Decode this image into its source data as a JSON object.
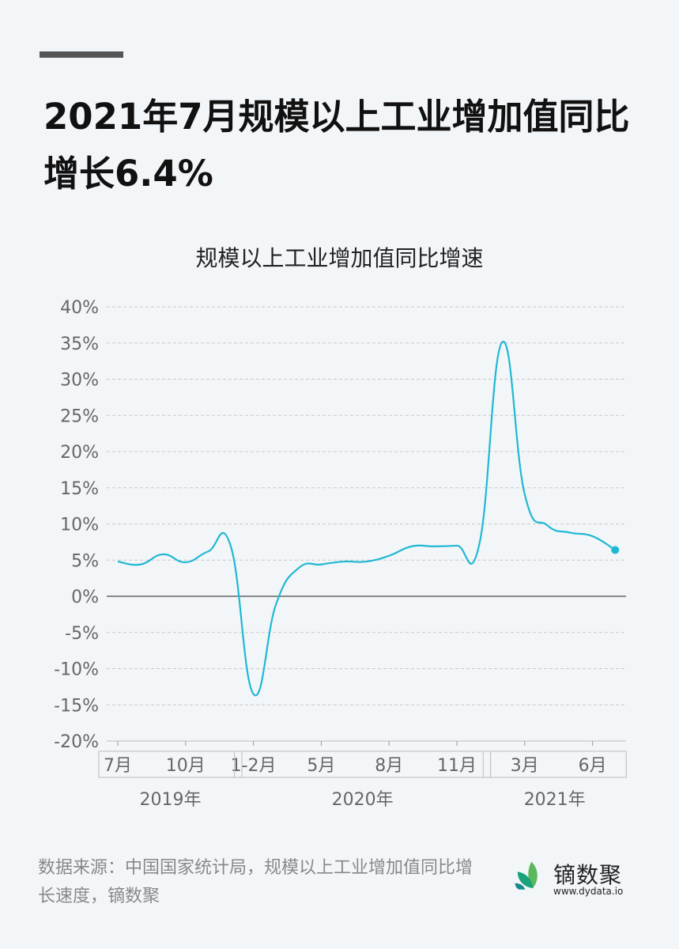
{
  "title": "2021年7月规模以上工业增加值同比增长6.4%",
  "source": "数据来源：中国国家统计局，规模以上工业增加值同比增长速度，镝数聚",
  "logo": {
    "name": "镝数聚",
    "url": "www.dydata.io"
  },
  "chart_data": {
    "type": "line",
    "title": "规模以上工业增加值同比增速",
    "ylim": [
      -20,
      40
    ],
    "yticks": [
      "40%",
      "35%",
      "30%",
      "25%",
      "20%",
      "15%",
      "10%",
      "5%",
      "0%",
      "-5%",
      "-10%",
      "-15%",
      "-20%"
    ],
    "ytick_values": [
      40,
      35,
      30,
      25,
      20,
      15,
      10,
      5,
      0,
      -5,
      -10,
      -15,
      -20
    ],
    "grid": true,
    "color": "#1fb8d3",
    "x": [
      "2019-07",
      "2019-08",
      "2019-09",
      "2019-10",
      "2019-11",
      "2019-12",
      "2020-01/02",
      "2020-03",
      "2020-04",
      "2020-05",
      "2020-06",
      "2020-07",
      "2020-08",
      "2020-09",
      "2020-10",
      "2020-11",
      "2020-12",
      "2021-01/02",
      "2021-03",
      "2021-04",
      "2021-05",
      "2021-06",
      "2021-07"
    ],
    "values": [
      4.8,
      4.4,
      5.8,
      4.7,
      6.2,
      6.9,
      -13.5,
      -1.1,
      3.9,
      4.4,
      4.8,
      4.8,
      5.6,
      6.9,
      6.9,
      7.0,
      7.3,
      35.1,
      14.1,
      9.8,
      8.8,
      8.3,
      6.4
    ],
    "xtick_labels": [
      {
        "label": "7月",
        "index": 0
      },
      {
        "label": "10月",
        "index": 3
      },
      {
        "label": "1-2月",
        "index": 6
      },
      {
        "label": "5月",
        "index": 9
      },
      {
        "label": "8月",
        "index": 12
      },
      {
        "label": "11月",
        "index": 15
      },
      {
        "label": "3月",
        "index": 18
      },
      {
        "label": "6月",
        "index": 21
      }
    ],
    "year_groups": [
      {
        "label": "2019年",
        "from": 0,
        "to": 5
      },
      {
        "label": "2020年",
        "from": 6,
        "to": 16
      },
      {
        "label": "2021年",
        "from": 17,
        "to": 22
      }
    ]
  }
}
